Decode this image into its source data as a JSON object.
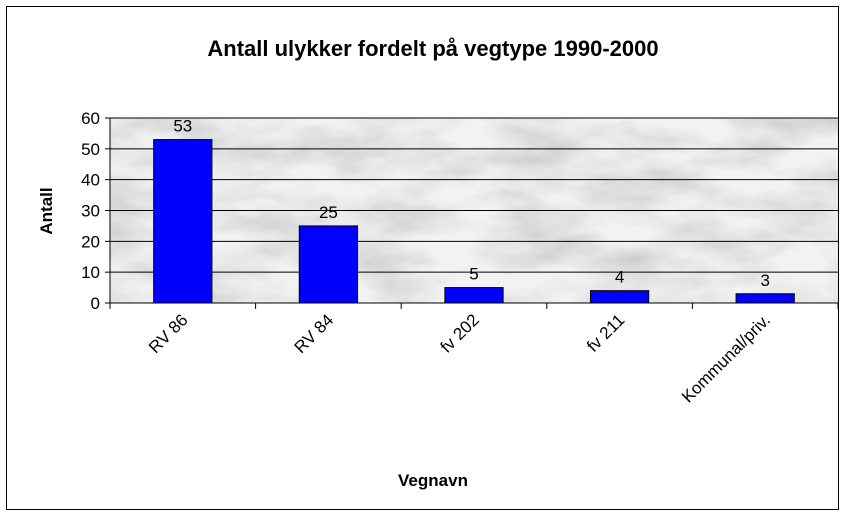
{
  "chart_data": {
    "type": "bar",
    "title": "Antall ulykker fordelt på vegtype 1990-2000",
    "x_label": "Vegnavn",
    "y_label": "Antall",
    "categories": [
      "RV 86",
      "RV 84",
      "fv 202",
      "fv 211",
      "Kommunal/priv."
    ],
    "values": [
      53,
      25,
      5,
      4,
      3
    ],
    "color": "#0000ff",
    "ylim": [
      0,
      60
    ],
    "yticks": [
      0,
      10,
      20,
      30,
      40,
      50,
      60
    ],
    "grid": true
  }
}
